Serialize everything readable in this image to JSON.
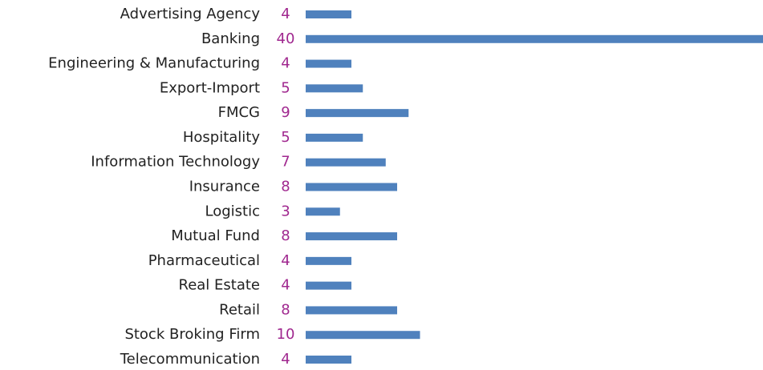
{
  "chart_data": {
    "type": "barh",
    "categories": [
      "Advertising Agency",
      "Banking",
      "Engineering & Manufacturing",
      "Export-Import",
      "FMCG",
      "Hospitality",
      "Information Technology",
      "Insurance",
      "Logistic",
      "Mutual Fund",
      "Pharmaceutical",
      "Real Estate",
      "Retail",
      "Stock Broking Firm",
      "Telecommunication"
    ],
    "values": [
      4,
      40,
      4,
      5,
      9,
      5,
      7,
      8,
      3,
      8,
      4,
      4,
      8,
      10,
      4
    ],
    "color": "#4f81bd",
    "label_color": "#a0288f",
    "xlim": [
      0,
      40
    ]
  }
}
